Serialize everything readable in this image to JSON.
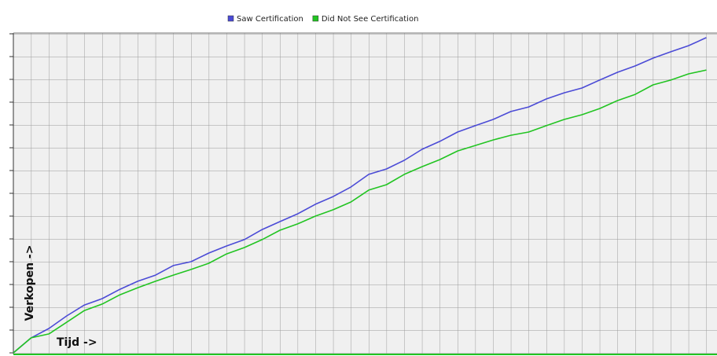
{
  "chart_data": {
    "type": "line",
    "x": [
      0,
      1,
      2,
      3,
      4,
      5,
      6,
      7,
      8,
      9,
      10,
      11,
      12,
      13,
      14,
      15,
      16,
      17,
      18,
      19,
      20,
      21,
      22,
      23,
      24,
      25,
      26,
      27,
      28,
      29,
      30,
      31,
      32,
      33,
      34,
      35,
      36,
      37,
      38,
      39
    ],
    "series": [
      {
        "name": "Saw Certification",
        "color": "#4b4bd6",
        "values": [
          0,
          0.66,
          1.07,
          1.62,
          2.1,
          2.38,
          2.79,
          3.14,
          3.41,
          3.83,
          4.0,
          4.38,
          4.69,
          4.97,
          5.41,
          5.76,
          6.1,
          6.52,
          6.86,
          7.28,
          7.83,
          8.07,
          8.45,
          8.93,
          9.28,
          9.69,
          9.97,
          10.24,
          10.59,
          10.79,
          11.14,
          11.41,
          11.62,
          11.97,
          12.31,
          12.59,
          12.93,
          13.21,
          13.48,
          13.83
        ]
      },
      {
        "name": "Did Not See Certification",
        "color": "#22c422",
        "values": [
          0,
          0.66,
          0.83,
          1.34,
          1.86,
          2.14,
          2.55,
          2.86,
          3.14,
          3.41,
          3.66,
          3.93,
          4.34,
          4.62,
          4.97,
          5.38,
          5.66,
          6.0,
          6.28,
          6.62,
          7.14,
          7.38,
          7.83,
          8.17,
          8.48,
          8.86,
          9.1,
          9.34,
          9.55,
          9.69,
          9.97,
          10.24,
          10.45,
          10.72,
          11.07,
          11.34,
          11.76,
          11.97,
          12.24,
          12.41
        ]
      }
    ],
    "xlabel": "Tijd ->",
    "ylabel": "Verkopen ->",
    "xlim": [
      0,
      39.6
    ],
    "ylim": [
      0,
      14
    ],
    "legend": "top"
  }
}
